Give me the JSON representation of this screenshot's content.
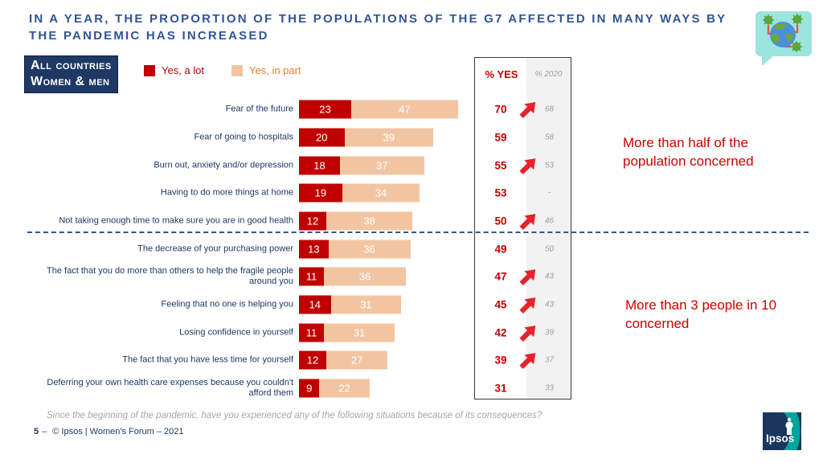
{
  "title": {
    "line1": "IN A YEAR, THE PROPORTION OF THE POPULATIONS OF THE G7 AFFECTED IN MANY WAYS BY",
    "line2": "THE PANDEMIC HAS INCREASED"
  },
  "badge": {
    "line1": "All countries",
    "line2": "Women & men"
  },
  "legend": {
    "items": [
      {
        "label": "Yes, a lot",
        "swatch_color": "#C00000",
        "text_color": "#C00000"
      },
      {
        "label": "Yes, in part",
        "swatch_color": "#F2C5A2",
        "text_color": "#ED7D31"
      }
    ]
  },
  "table": {
    "yes_header": "% YES",
    "y2020_header": "% 2020"
  },
  "chart_data": {
    "type": "bar",
    "orientation": "horizontal",
    "stacked": true,
    "title": "In a year, the proportion of the populations of the G7 affected in many ways by the pandemic has increased",
    "categories": [
      "Fear of the future",
      "Fear of going to hospitals",
      "Burn out, anxiety and/or depression",
      "Having to do more things at home",
      "Not taking enough time to make sure you are in good health",
      "The decrease of your purchasing power",
      "The fact that you do more than others to help the fragile people around you",
      "Feeling that no one is helping you",
      "Losing confidence in yourself",
      "The fact that you have less time for yourself",
      "Deferring your own health care expenses because you couldn't afford them"
    ],
    "series": [
      {
        "name": "Yes, a lot",
        "color": "#C00000",
        "values": [
          23,
          20,
          18,
          19,
          12,
          13,
          11,
          14,
          11,
          12,
          9
        ]
      },
      {
        "name": "Yes, in part",
        "color": "#F2C5A2",
        "values": [
          47,
          39,
          37,
          34,
          38,
          36,
          36,
          31,
          31,
          27,
          22
        ]
      }
    ],
    "pct_yes": [
      70,
      59,
      55,
      53,
      50,
      49,
      47,
      45,
      42,
      39,
      31
    ],
    "pct_2020": [
      "68",
      "58",
      "53",
      "-",
      "46",
      "50",
      "43",
      "43",
      "39",
      "37",
      "33"
    ],
    "increase_arrow": [
      true,
      false,
      true,
      false,
      true,
      false,
      true,
      true,
      true,
      true,
      false
    ],
    "xlim": [
      0,
      100
    ],
    "legend_position": "top"
  },
  "annotations": {
    "top": "More than half of the population concerned",
    "bottom": "More than 3 people in 10 concerned"
  },
  "footnote": "Since the beginning of the pandemic, have you experienced any of the following situations because of its consequences?",
  "footer": {
    "page_number": "5",
    "dash": "–",
    "credit": "© Ipsos | Women's Forum – 2021"
  },
  "logo": {
    "text": "Ipsos"
  },
  "colors": {
    "title_blue": "#2F5496",
    "navy": "#1F3864",
    "bar_red": "#C00000",
    "bar_peach": "#F2C5A2",
    "arrow_red": "#E8212B",
    "annotation_red": "#CC0000",
    "gray_col_bg": "#F2F2F2",
    "bubble_teal": "#9CE4DE",
    "ipsos_navy": "#1B365D",
    "ipsos_teal": "#00A49A"
  }
}
